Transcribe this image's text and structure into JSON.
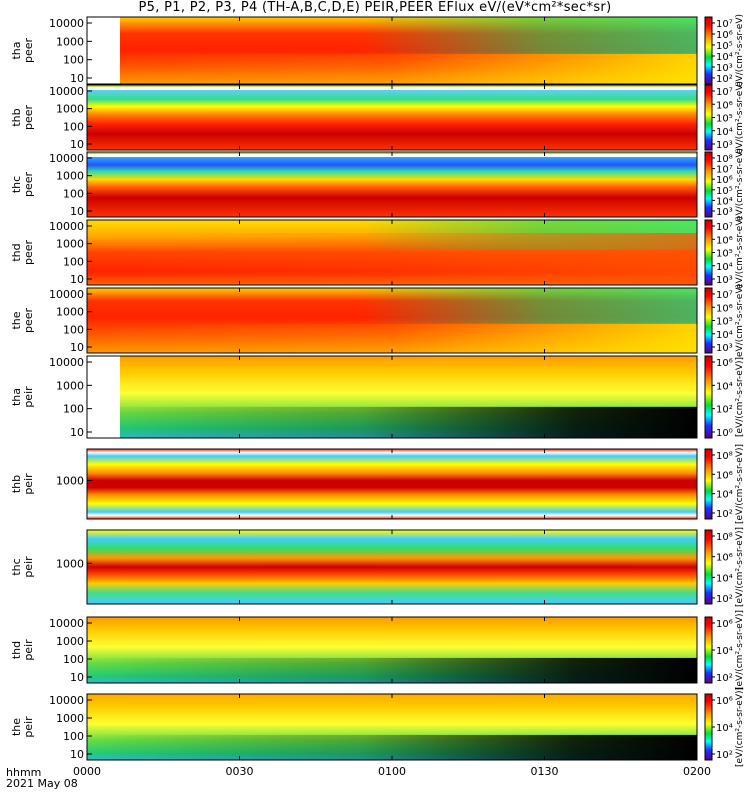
{
  "title": "P5, P1, P2, P3, P4 (TH-A,B,C,D,E) PEIR,PEER EFlux eV/(eV*cm²*sec*sr)",
  "time_axis": {
    "label_line1": "hhmm",
    "label_line2": "2021 May 08",
    "ticks": [
      "0000",
      "0030",
      "0100",
      "0130",
      "0200"
    ]
  },
  "colorbar": {
    "scale": "log",
    "label_peer": "eV/(cm²-s-sr-eV)",
    "label_peir": "[eV/(cm²-s-sr-eV)]"
  },
  "chart_data": {
    "type": "heatmap",
    "x_range_minutes": [
      0,
      120
    ],
    "y_scale": "log",
    "panels": [
      {
        "name": "tha peer",
        "y_label_line1": "tha",
        "y_label_line2": "peer",
        "y_ticks": [
          "10000",
          "1000",
          "100",
          "10"
        ],
        "cbar_ticks": [
          "10⁷",
          "10⁶",
          "10⁵",
          "10⁴",
          "10³",
          "10²"
        ]
      },
      {
        "name": "thb peer",
        "y_label_line1": "thb",
        "y_label_line2": "peer",
        "y_ticks": [
          "10000",
          "1000",
          "100",
          "10"
        ],
        "cbar_ticks": [
          "10⁷",
          "10⁶",
          "10⁵",
          "10⁴",
          "10³"
        ]
      },
      {
        "name": "thc peer",
        "y_label_line1": "thc",
        "y_label_line2": "peer",
        "y_ticks": [
          "10000",
          "1000",
          "100",
          "10"
        ],
        "cbar_ticks": [
          "10⁸",
          "10⁷",
          "10⁶",
          "10⁵",
          "10⁴",
          "10³"
        ]
      },
      {
        "name": "thd peer",
        "y_label_line1": "thd",
        "y_label_line2": "peer",
        "y_ticks": [
          "10000",
          "1000",
          "100",
          "10"
        ],
        "cbar_ticks": [
          "10⁷",
          "10⁶",
          "10⁵",
          "10⁴",
          "10³"
        ]
      },
      {
        "name": "the peer",
        "y_label_line1": "the",
        "y_label_line2": "peer",
        "y_ticks": [
          "10000",
          "1000",
          "100",
          "10"
        ],
        "cbar_ticks": [
          "10⁷",
          "10⁶",
          "10⁵",
          "10⁴",
          "10³"
        ]
      },
      {
        "name": "tha peir",
        "y_label_line1": "tha",
        "y_label_line2": "peir",
        "y_ticks": [
          "10000",
          "1000",
          "100",
          "10"
        ],
        "cbar_ticks": [
          "10⁶",
          "10⁴",
          "10²",
          "10⁰"
        ]
      },
      {
        "name": "thb peir",
        "y_label_line1": "thb",
        "y_label_line2": "peir",
        "y_ticks": [
          "1000"
        ],
        "cbar_ticks": [
          "10⁸",
          "10⁶",
          "10⁴",
          "10²"
        ]
      },
      {
        "name": "thc peir",
        "y_label_line1": "thc",
        "y_label_line2": "peir",
        "y_ticks": [
          "1000"
        ],
        "cbar_ticks": [
          "10⁸",
          "10⁶",
          "10⁴",
          "10²"
        ]
      },
      {
        "name": "thd peir",
        "y_label_line1": "thd",
        "y_label_line2": "peir",
        "y_ticks": [
          "10000",
          "1000",
          "100",
          "10"
        ],
        "cbar_ticks": [
          "10⁶",
          "10⁴",
          "10²"
        ]
      },
      {
        "name": "the peir",
        "y_label_line1": "the",
        "y_label_line2": "peir",
        "y_ticks": [
          "10000",
          "1000",
          "100",
          "10"
        ],
        "cbar_ticks": [
          "10⁶",
          "10⁴",
          "10²"
        ]
      }
    ]
  }
}
